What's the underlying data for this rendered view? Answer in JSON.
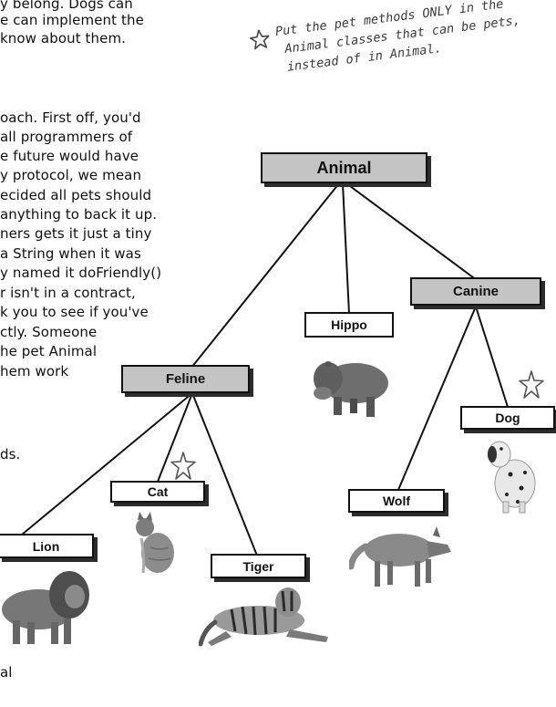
{
  "body_text": {
    "lines": [
      "y belong. Dogs can",
      "e can implement the",
      " know about them.",
      "oach. First off, you'd",
      "all programmers of",
      "e future would have",
      "y protocol, we mean",
      "ecided all pets should",
      "anything to back it up.",
      "ners gets it just a tiny",
      "a String when it was",
      "y named it doFriendly()",
      "r isn't in a contract,",
      "k you to see if you've",
      "ctly. Someone",
      "he pet Animal",
      "hem work",
      "ds.",
      "al"
    ]
  },
  "annotation": {
    "lines": [
      "Put the pet methods ONLY in the",
      "Animal classes that can be pets,",
      "instead of in Animal."
    ]
  },
  "nodes": {
    "animal": "Animal",
    "hippo": "Hippo",
    "canine": "Canine",
    "feline": "Feline",
    "dog": "Dog",
    "cat": "Cat",
    "wolf": "Wolf",
    "lion": "Lion",
    "tiger": "Tiger"
  }
}
